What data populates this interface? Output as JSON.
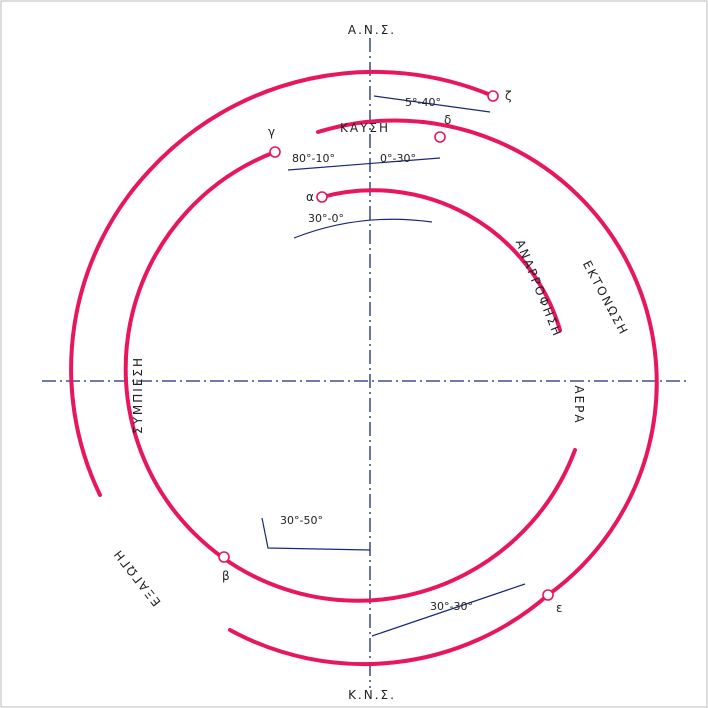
{
  "top_label": "Α.Ν.Σ.",
  "bottom_label": "Κ.Ν.Σ.",
  "phases": {
    "combustion": "ΚΑΥΣΗ",
    "expansion": "ΕΚΤΟΝΩΣΗ",
    "intake": "ΑΝΑΡΡΟΦΗΣΗ",
    "intake_air": "ΑΕΡΑ",
    "compression": "ΣΥΜΠΙΕΣΗ",
    "exhaust": "ΕΞΑΓΩΓΗ"
  },
  "points": {
    "zeta": "ζ",
    "delta": "δ",
    "gamma": "γ",
    "alpha": "α",
    "beta": "β",
    "epsilon": "ε"
  },
  "angles": {
    "zeta": "5°-40°",
    "gamma": "80°-10°",
    "delta": "0°-30°",
    "alpha": "30°-0°",
    "beta": "30°-50°",
    "epsilon": "30°-30°"
  }
}
